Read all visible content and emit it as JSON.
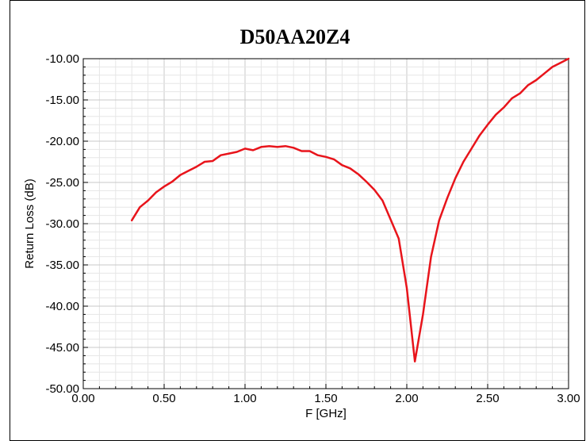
{
  "chart_data": {
    "type": "line",
    "title": "D50AA20Z4",
    "xlabel": "F [GHz]",
    "ylabel": "Return Loss (dB)",
    "xlim": [
      0,
      3
    ],
    "ylim": [
      -50,
      -10
    ],
    "x_ticks": [
      "0.00",
      "0.50",
      "1.00",
      "1.50",
      "2.00",
      "2.50",
      "3.00"
    ],
    "y_ticks": [
      "-10.00",
      "-15.00",
      "-20.00",
      "-25.00",
      "-30.00",
      "-35.00",
      "-40.00",
      "-45.00",
      "-50.00"
    ],
    "grid": true,
    "line_color": "#e8141b",
    "series": [
      {
        "x": [
          0.3,
          0.35,
          0.4,
          0.45,
          0.5,
          0.55,
          0.6,
          0.65,
          0.7,
          0.75,
          0.8,
          0.85,
          0.9,
          0.95,
          1.0,
          1.05,
          1.1,
          1.15,
          1.2,
          1.25,
          1.3,
          1.35,
          1.4,
          1.45,
          1.5,
          1.55,
          1.6,
          1.65,
          1.7,
          1.75,
          1.8,
          1.85,
          1.9,
          1.95,
          2.0,
          2.05,
          2.1,
          2.15,
          2.2,
          2.25,
          2.3,
          2.35,
          2.4,
          2.45,
          2.5,
          2.55,
          2.6,
          2.65,
          2.7,
          2.75,
          2.8,
          2.85,
          2.9,
          2.95,
          3.0
        ],
        "y": [
          -29.6,
          -28.0,
          -27.2,
          -26.2,
          -25.5,
          -24.9,
          -24.1,
          -23.6,
          -23.1,
          -22.5,
          -22.4,
          -21.7,
          -21.5,
          -21.3,
          -20.9,
          -21.1,
          -20.7,
          -20.6,
          -20.7,
          -20.6,
          -20.8,
          -21.2,
          -21.2,
          -21.7,
          -21.9,
          -22.2,
          -22.9,
          -23.3,
          -24.0,
          -24.9,
          -25.9,
          -27.2,
          -29.5,
          -31.8,
          -37.8,
          -46.7,
          -41.0,
          -34.0,
          -29.6,
          -26.9,
          -24.5,
          -22.5,
          -20.9,
          -19.3,
          -18.0,
          -16.8,
          -15.9,
          -14.8,
          -14.2,
          -13.2,
          -12.6,
          -11.8,
          -11.0,
          -10.5,
          -10.0
        ]
      }
    ]
  }
}
